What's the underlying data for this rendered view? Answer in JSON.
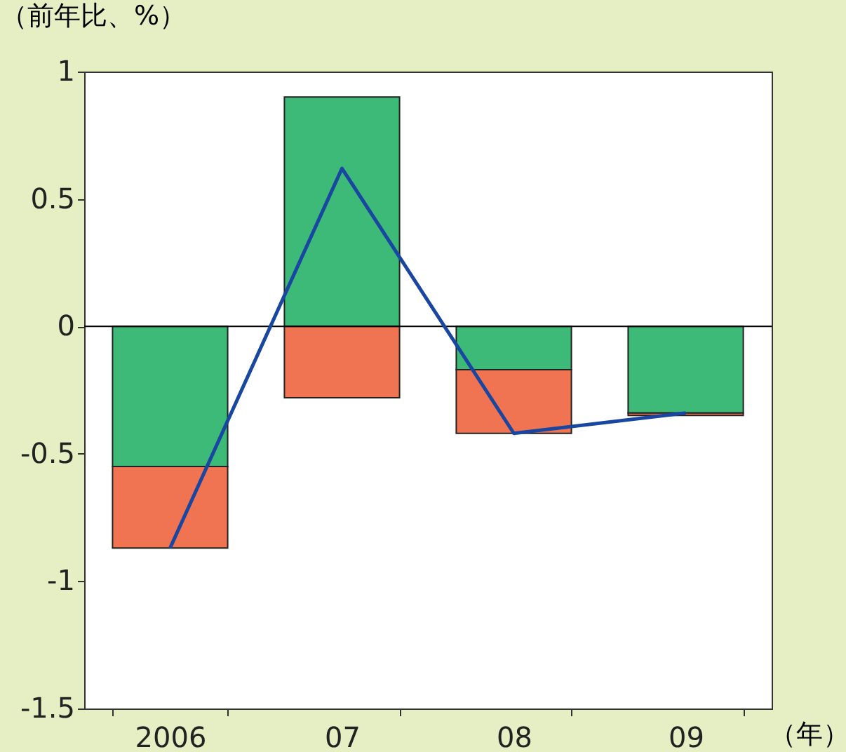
{
  "chart_data": {
    "type": "bar",
    "stacked": true,
    "ylabel": "（前年比、%）",
    "xlabel": "（年）",
    "categories": [
      "2006",
      "07",
      "08",
      "09"
    ],
    "series": [
      {
        "color": "#3dba78",
        "values": [
          -0.55,
          0.9,
          -0.17,
          -0.34
        ]
      },
      {
        "color": "#f07352",
        "values": [
          -0.32,
          -0.28,
          -0.25,
          -0.01
        ]
      },
      {
        "type": "line",
        "color": "#1846a0",
        "values": [
          -0.87,
          0.62,
          -0.42,
          -0.34
        ]
      }
    ],
    "ylim": [
      -1.5,
      1
    ],
    "yticks": [
      {
        "value": -1.5,
        "label": "-1.5"
      },
      {
        "value": -1,
        "label": "-1"
      },
      {
        "value": -0.5,
        "label": "-0.5"
      },
      {
        "value": 0,
        "label": "0"
      },
      {
        "value": 0.5,
        "label": "0.5"
      },
      {
        "value": 1,
        "label": "1"
      }
    ],
    "ref_lines": [
      {
        "axis": "y",
        "value": 0,
        "color": "#000000"
      }
    ],
    "grid": false,
    "marker": "none",
    "line_style": "solid"
  }
}
